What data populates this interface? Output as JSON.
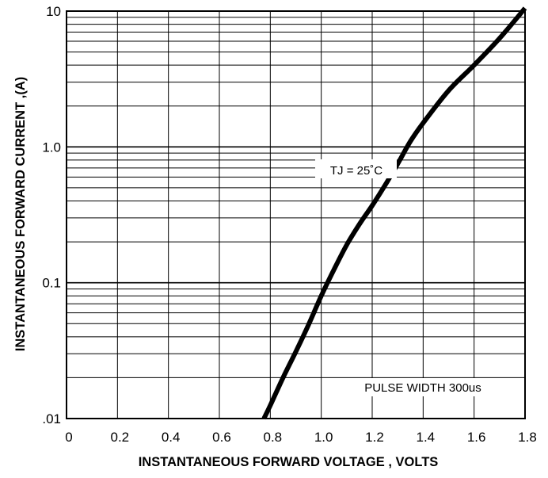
{
  "chart_data": {
    "type": "line",
    "title": "",
    "xlabel": "INSTANTANEOUS FORWARD VOLTAGE , VOLTS",
    "ylabel": "INSTANTANEOUS  FORWARD CURRENT ,(A)",
    "xlim": [
      0,
      1.8
    ],
    "ylim": [
      0.01,
      10
    ],
    "y_scale": "log",
    "grid": true,
    "x_ticks": [
      0,
      0.2,
      0.4,
      0.6,
      0.8,
      1.0,
      1.2,
      1.4,
      1.6,
      1.8
    ],
    "x_tick_labels": [
      "0",
      "0.2",
      "0.4",
      "0.6",
      "0.8",
      "1.0",
      "1.2",
      "1.4",
      "1.6",
      "1.8"
    ],
    "y_ticks": [
      0.01,
      0.1,
      1.0,
      10
    ],
    "y_tick_labels": [
      ".01",
      "0.1",
      "1.0",
      "10"
    ],
    "annotations": [
      {
        "text": "TJ = 25˚C"
      },
      {
        "text": "PULSE WIDTH 300us"
      }
    ],
    "series": [
      {
        "x": [
          0.775,
          0.8,
          0.85,
          0.9,
          0.95,
          1.0,
          1.05,
          1.1,
          1.15,
          1.2,
          1.25,
          1.3,
          1.35,
          1.4,
          1.5,
          1.6,
          1.7,
          1.8
        ],
        "y": [
          0.01,
          0.0125,
          0.02,
          0.031,
          0.049,
          0.08,
          0.125,
          0.19,
          0.27,
          0.37,
          0.52,
          0.75,
          1.1,
          1.5,
          2.6,
          4.0,
          6.3,
          10.5
        ],
        "color": "#000000"
      }
    ]
  }
}
